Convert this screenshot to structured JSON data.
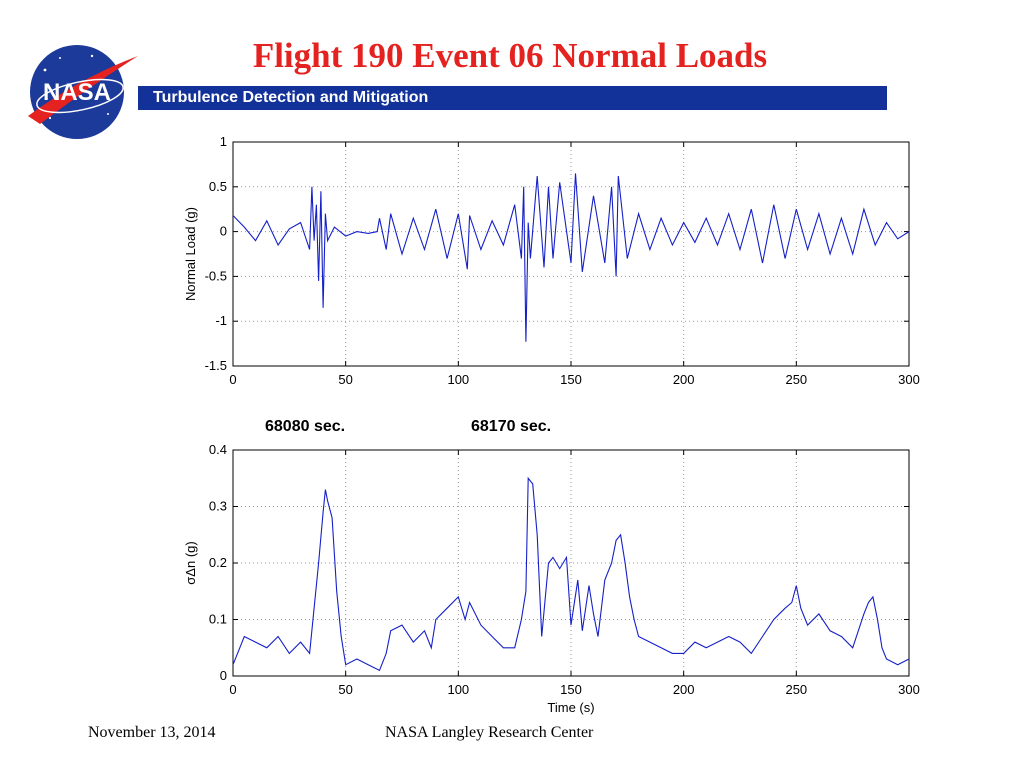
{
  "slide": {
    "title": "Flight 190 Event 06 Normal Loads",
    "banner": "Turbulence Detection and Mitigation",
    "logo_text": "NASA",
    "marker_left": "68080 sec.",
    "marker_right": "68170 sec.",
    "footer_date": "November 13, 2014",
    "footer_center": "NASA Langley Research Center"
  },
  "colors": {
    "title": "#e4221f",
    "banner": "#12329a",
    "line": "#1520c8"
  },
  "chart_data": [
    {
      "type": "line",
      "ylabel": "Normal Load (g)",
      "xlabel": "",
      "xlim": [
        0,
        300
      ],
      "ylim": [
        -1.5,
        1
      ],
      "xticks": [
        0,
        50,
        100,
        150,
        200,
        250,
        300
      ],
      "yticks": [
        -1.5,
        -1,
        -0.5,
        0,
        0.5,
        1
      ],
      "ytick_labels": [
        "-1.5",
        "-1",
        "-0.5",
        "0",
        "0.5",
        "1"
      ],
      "grid": true,
      "series": [
        {
          "x": [
            0,
            5,
            10,
            15,
            20,
            25,
            30,
            34,
            35,
            36,
            37,
            38,
            39,
            40,
            41,
            42,
            45,
            50,
            55,
            60,
            64,
            65,
            68,
            70,
            75,
            80,
            85,
            90,
            95,
            100,
            104,
            105,
            110,
            115,
            120,
            125,
            128,
            129,
            130,
            131,
            132,
            135,
            138,
            140,
            142,
            145,
            150,
            152,
            155,
            160,
            165,
            168,
            170,
            171,
            175,
            180,
            185,
            190,
            195,
            200,
            205,
            210,
            215,
            220,
            225,
            230,
            235,
            240,
            245,
            250,
            255,
            260,
            265,
            270,
            275,
            280,
            285,
            290,
            295,
            300
          ],
          "y": [
            0.18,
            0.05,
            -0.1,
            0.12,
            -0.15,
            0.03,
            0.1,
            -0.2,
            0.5,
            -0.1,
            0.3,
            -0.55,
            0.45,
            -0.85,
            0.2,
            -0.1,
            0.05,
            -0.05,
            0.0,
            -0.02,
            0.0,
            0.15,
            -0.2,
            0.2,
            -0.25,
            0.15,
            -0.2,
            0.25,
            -0.3,
            0.2,
            -0.42,
            0.18,
            -0.2,
            0.12,
            -0.15,
            0.3,
            -0.3,
            0.5,
            -1.23,
            0.1,
            -0.3,
            0.62,
            -0.4,
            0.5,
            -0.3,
            0.55,
            -0.35,
            0.65,
            -0.45,
            0.4,
            -0.35,
            0.5,
            -0.5,
            0.62,
            -0.3,
            0.2,
            -0.2,
            0.15,
            -0.15,
            0.1,
            -0.12,
            0.15,
            -0.15,
            0.2,
            -0.2,
            0.25,
            -0.35,
            0.3,
            -0.3,
            0.25,
            -0.2,
            0.2,
            -0.25,
            0.15,
            -0.25,
            0.25,
            -0.15,
            0.1,
            -0.08,
            0.0
          ]
        }
      ]
    },
    {
      "type": "line",
      "ylabel": "σΔn (g)",
      "xlabel": "Time (s)",
      "xlim": [
        0,
        300
      ],
      "ylim": [
        0,
        0.4
      ],
      "xticks": [
        0,
        50,
        100,
        150,
        200,
        250,
        300
      ],
      "yticks": [
        0,
        0.1,
        0.2,
        0.3,
        0.4
      ],
      "ytick_labels": [
        "0",
        "0.1",
        "0.2",
        "0.3",
        "0.4"
      ],
      "grid": true,
      "series": [
        {
          "x": [
            0,
            3,
            5,
            10,
            15,
            20,
            25,
            30,
            34,
            36,
            38,
            40,
            41,
            42,
            44,
            46,
            48,
            50,
            55,
            60,
            65,
            68,
            70,
            75,
            80,
            85,
            88,
            90,
            95,
            100,
            103,
            105,
            110,
            115,
            120,
            125,
            128,
            130,
            131,
            133,
            135,
            137,
            140,
            142,
            145,
            148,
            150,
            153,
            155,
            158,
            160,
            162,
            165,
            168,
            170,
            172,
            174,
            176,
            178,
            180,
            185,
            190,
            195,
            200,
            205,
            210,
            215,
            220,
            225,
            230,
            235,
            240,
            245,
            248,
            250,
            252,
            255,
            260,
            265,
            270,
            275,
            280,
            282,
            284,
            286,
            288,
            290,
            295,
            300
          ],
          "y": [
            0.02,
            0.05,
            0.07,
            0.06,
            0.05,
            0.07,
            0.04,
            0.06,
            0.04,
            0.12,
            0.2,
            0.29,
            0.33,
            0.31,
            0.28,
            0.15,
            0.07,
            0.02,
            0.03,
            0.02,
            0.01,
            0.04,
            0.08,
            0.09,
            0.06,
            0.08,
            0.05,
            0.1,
            0.12,
            0.14,
            0.1,
            0.13,
            0.09,
            0.07,
            0.05,
            0.05,
            0.1,
            0.15,
            0.35,
            0.34,
            0.25,
            0.07,
            0.2,
            0.21,
            0.19,
            0.21,
            0.09,
            0.17,
            0.08,
            0.16,
            0.11,
            0.07,
            0.17,
            0.2,
            0.24,
            0.25,
            0.2,
            0.14,
            0.1,
            0.07,
            0.06,
            0.05,
            0.04,
            0.04,
            0.06,
            0.05,
            0.06,
            0.07,
            0.06,
            0.04,
            0.07,
            0.1,
            0.12,
            0.13,
            0.16,
            0.12,
            0.09,
            0.11,
            0.08,
            0.07,
            0.05,
            0.11,
            0.13,
            0.14,
            0.1,
            0.05,
            0.03,
            0.02,
            0.03
          ]
        }
      ]
    }
  ]
}
